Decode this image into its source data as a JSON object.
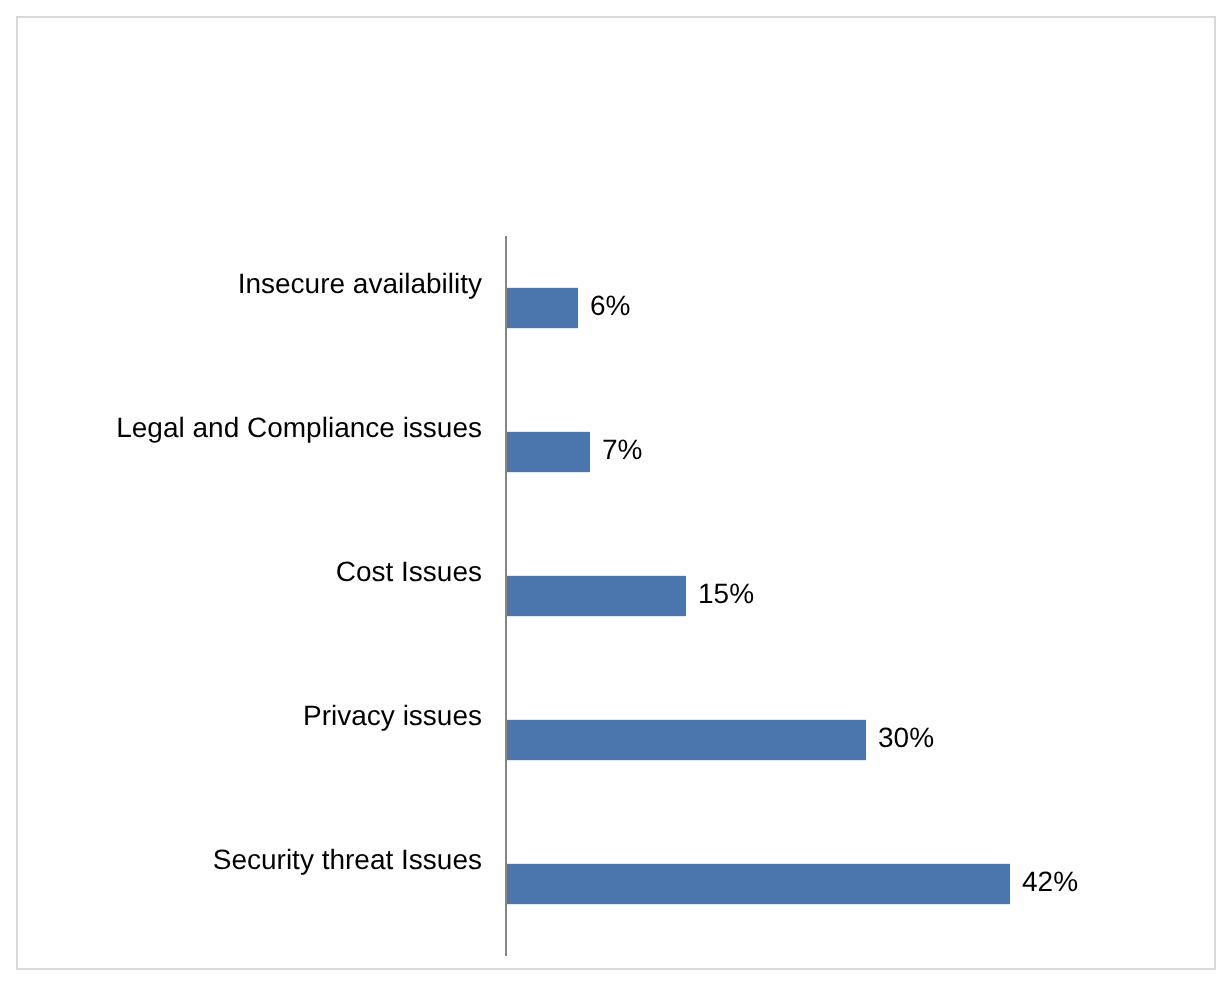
{
  "chart_data": {
    "type": "bar",
    "orientation": "horizontal",
    "categories": [
      "Insecure availability",
      "Legal and Compliance issues",
      "Cost Issues",
      "Privacy issues",
      "Security  threat Issues"
    ],
    "values": [
      6,
      7,
      15,
      30,
      42
    ],
    "value_labels": [
      "6%",
      "7%",
      "15%",
      "30%",
      "42%"
    ],
    "color": "#4a76ad"
  }
}
